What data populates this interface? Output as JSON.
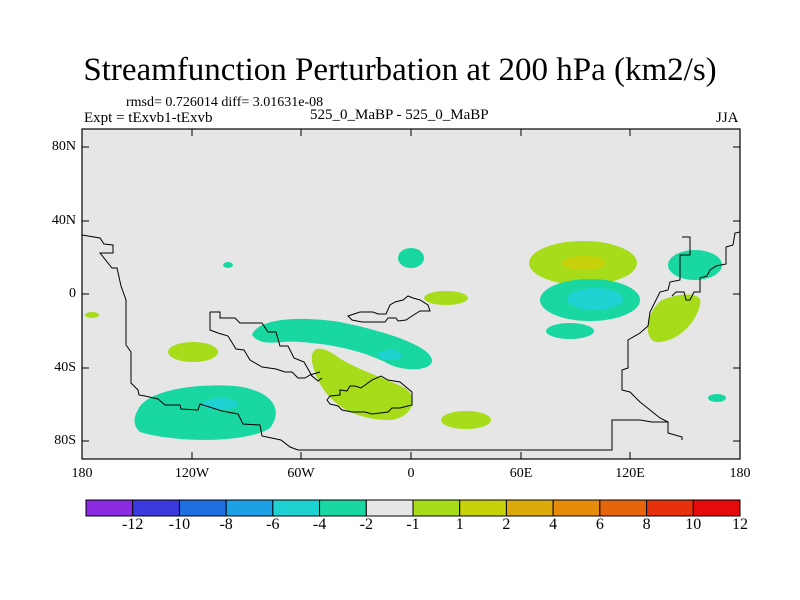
{
  "title": "Streamfunction Perturbation at 200 hPa (km2/s)",
  "stats_line": "rmsd= 0.726014 diff= 3.01631e-08",
  "left_label": "Expt = tExvb1-tExvb",
  "center_label": "525_0_MaBP - 525_0_MaBP",
  "right_label": "JJA",
  "lat_labels": [
    "80N",
    "40N",
    "0",
    "40S",
    "80S"
  ],
  "lon_labels": [
    "180",
    "120W",
    "60W",
    "0",
    "60E",
    "120E",
    "180"
  ],
  "colorbar": {
    "colors": [
      "#8a2be2",
      "#3a3adf",
      "#1e6fe0",
      "#1ea0e6",
      "#1ed2d2",
      "#19d7a0",
      "#e6e6e6",
      "#a6dc19",
      "#c8d20a",
      "#dcaa0a",
      "#e68c0a",
      "#e6640a",
      "#e6320a",
      "#e60a0a"
    ],
    "labels": [
      "-12",
      "-10",
      "-8",
      "-6",
      "-4",
      "-2",
      "-1",
      "1",
      "2",
      "4",
      "6",
      "8",
      "10",
      "12"
    ]
  },
  "map_colors": {
    "background": "#e6e6e6",
    "neg_light": "#19d7a0",
    "neg_mid": "#1ed2d2",
    "pos_light": "#a6dc19",
    "pos_mid": "#c8d20a"
  }
}
